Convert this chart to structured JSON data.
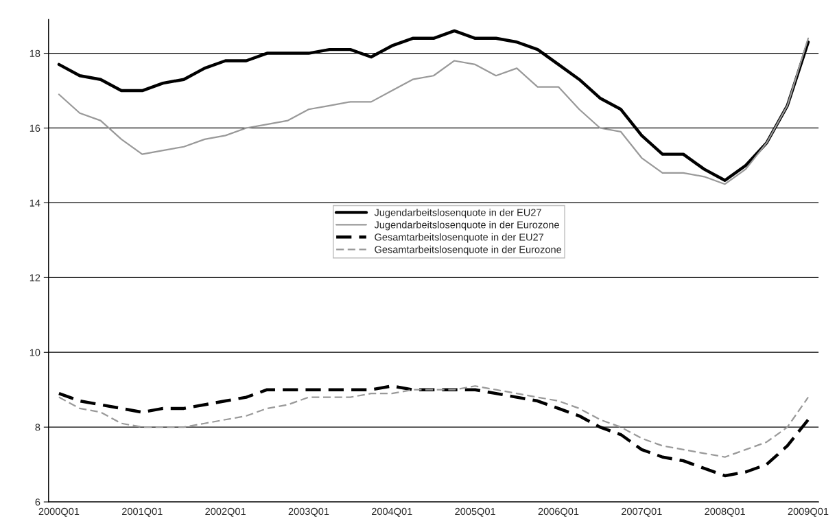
{
  "chart_data": {
    "type": "line",
    "categories": [
      "2000Q01",
      null,
      null,
      null,
      "2001Q01",
      null,
      null,
      null,
      "2002Q01",
      null,
      null,
      null,
      "2003Q01",
      null,
      null,
      null,
      "2004Q01",
      null,
      null,
      null,
      "2005Q01",
      null,
      null,
      null,
      "2006Q01",
      null,
      null,
      null,
      "2007Q01",
      null,
      null,
      null,
      "2008Q01",
      null,
      null,
      null,
      "2009Q01"
    ],
    "series": [
      {
        "name": "Jugendarbeitslosenquote in der EU27",
        "color": "#000000",
        "line_style": "solid",
        "values": [
          17.7,
          17.4,
          17.3,
          17.0,
          17.0,
          17.2,
          17.3,
          17.6,
          17.8,
          17.8,
          18.0,
          18.0,
          18.0,
          18.1,
          18.1,
          17.9,
          18.2,
          18.4,
          18.4,
          18.6,
          18.4,
          18.4,
          18.3,
          18.1,
          17.7,
          17.3,
          16.8,
          16.5,
          15.8,
          15.3,
          15.3,
          14.9,
          14.6,
          15.0,
          15.6,
          16.6,
          18.3
        ]
      },
      {
        "name": "Jugendarbeitslosenquote in der Eurozone",
        "color": "#999999",
        "line_style": "solid",
        "values": [
          16.9,
          16.4,
          16.2,
          15.7,
          15.3,
          15.4,
          15.5,
          15.7,
          15.8,
          16.0,
          16.1,
          16.2,
          16.5,
          16.6,
          16.7,
          16.7,
          17.0,
          17.3,
          17.4,
          17.8,
          17.7,
          17.4,
          17.6,
          17.1,
          17.1,
          16.5,
          16.0,
          15.9,
          15.2,
          14.8,
          14.8,
          14.7,
          14.5,
          14.9,
          15.6,
          16.6,
          18.4
        ]
      },
      {
        "name": "Gesamtarbeitslosenquote in der EU27",
        "color": "#000000",
        "line_style": "dashed",
        "values": [
          8.9,
          8.7,
          8.6,
          8.5,
          8.4,
          8.5,
          8.5,
          8.6,
          8.7,
          8.8,
          9.0,
          9.0,
          9.0,
          9.0,
          9.0,
          9.0,
          9.1,
          9.0,
          9.0,
          9.0,
          9.0,
          8.9,
          8.8,
          8.7,
          8.5,
          8.3,
          8.0,
          7.8,
          7.4,
          7.2,
          7.1,
          6.9,
          6.7,
          6.8,
          7.0,
          7.5,
          8.2
        ]
      },
      {
        "name": "Gesamtarbeitslosenquote in der Eurozone",
        "color": "#999999",
        "line_style": "dashed",
        "values": [
          8.8,
          8.5,
          8.4,
          8.1,
          8.0,
          8.0,
          8.0,
          8.1,
          8.2,
          8.3,
          8.5,
          8.6,
          8.8,
          8.8,
          8.8,
          8.9,
          8.9,
          9.0,
          9.0,
          9.0,
          9.1,
          9.0,
          8.9,
          8.8,
          8.7,
          8.5,
          8.2,
          8.0,
          7.7,
          7.5,
          7.4,
          7.3,
          7.2,
          7.4,
          7.6,
          8.0,
          8.8
        ]
      }
    ],
    "ylim": [
      6,
      18.9
    ],
    "yticks": [
      6,
      8,
      10,
      12,
      14,
      16,
      18
    ],
    "grid": "y",
    "legend": "center",
    "marker": "none"
  }
}
